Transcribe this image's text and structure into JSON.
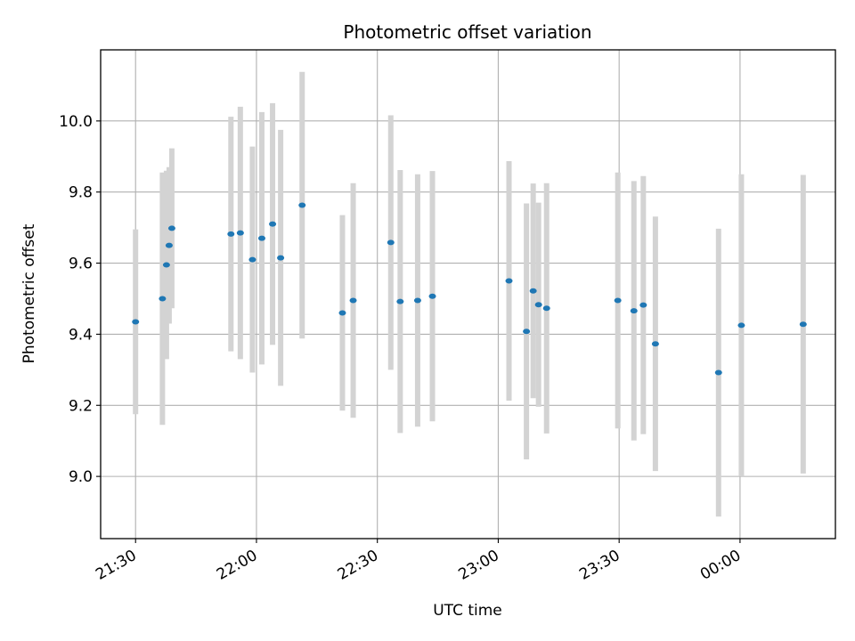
{
  "chart_data": {
    "type": "scatter",
    "title": "Photometric offset variation",
    "xlabel": "UTC time",
    "ylabel": "Photometric offset",
    "x_tick_labels": [
      "21:30",
      "22:00",
      "22:30",
      "23:00",
      "23:30",
      "00:00"
    ],
    "x_tick_times": [
      "21:30",
      "22:00",
      "22:30",
      "23:00",
      "23:30",
      "00:00"
    ],
    "y_ticks": [
      9.0,
      9.2,
      9.4,
      9.6,
      9.8,
      10.0
    ],
    "y_tick_labels": [
      "9.0",
      "9.2",
      "9.4",
      "9.6",
      "9.8",
      "10.0"
    ],
    "xlim": [
      "21:21:20",
      "00:23:40"
    ],
    "ylim": [
      8.825,
      10.2
    ],
    "grid": true,
    "marker_color": "#1f77b4",
    "errorbar_color": "#d3d3d3",
    "series": [
      {
        "points": [
          {
            "t": "21:30",
            "y": 9.435,
            "err": 0.26
          },
          {
            "t": "21:36:40",
            "y": 9.5,
            "err": 0.355
          },
          {
            "t": "21:37:40",
            "y": 9.595,
            "err": 0.265
          },
          {
            "t": "21:38:20",
            "y": 9.65,
            "err": 0.22
          },
          {
            "t": "21:39",
            "y": 9.698,
            "err": 0.225
          },
          {
            "t": "21:53:40",
            "y": 9.682,
            "err": 0.33
          },
          {
            "t": "21:56",
            "y": 9.685,
            "err": 0.355
          },
          {
            "t": "21:59",
            "y": 9.61,
            "err": 0.318
          },
          {
            "t": "22:01:20",
            "y": 9.67,
            "err": 0.355
          },
          {
            "t": "22:04",
            "y": 9.71,
            "err": 0.34
          },
          {
            "t": "22:06",
            "y": 9.615,
            "err": 0.36
          },
          {
            "t": "22:11:20",
            "y": 9.763,
            "err": 0.375
          },
          {
            "t": "22:21:20",
            "y": 9.46,
            "err": 0.275
          },
          {
            "t": "22:24",
            "y": 9.495,
            "err": 0.33
          },
          {
            "t": "22:33:20",
            "y": 9.658,
            "err": 0.358
          },
          {
            "t": "22:35:40",
            "y": 9.492,
            "err": 0.37
          },
          {
            "t": "22:40",
            "y": 9.495,
            "err": 0.355
          },
          {
            "t": "22:43:40",
            "y": 9.507,
            "err": 0.352
          },
          {
            "t": "23:02:40",
            "y": 9.55,
            "err": 0.337
          },
          {
            "t": "23:07",
            "y": 9.408,
            "err": 0.36
          },
          {
            "t": "23:08:40",
            "y": 9.522,
            "err": 0.302
          },
          {
            "t": "23:10",
            "y": 9.483,
            "err": 0.287
          },
          {
            "t": "23:12",
            "y": 9.473,
            "err": 0.352
          },
          {
            "t": "23:29:40",
            "y": 9.495,
            "err": 0.36
          },
          {
            "t": "23:33:40",
            "y": 9.466,
            "err": 0.365
          },
          {
            "t": "23:36",
            "y": 9.482,
            "err": 0.363
          },
          {
            "t": "23:39",
            "y": 9.373,
            "err": 0.358
          },
          {
            "t": "23:54:40",
            "y": 9.292,
            "err": 0.405
          },
          {
            "t": "00:00:20",
            "y": 9.425,
            "err": 0.425
          },
          {
            "t": "00:15:40",
            "y": 9.428,
            "err": 0.42
          }
        ]
      }
    ]
  }
}
